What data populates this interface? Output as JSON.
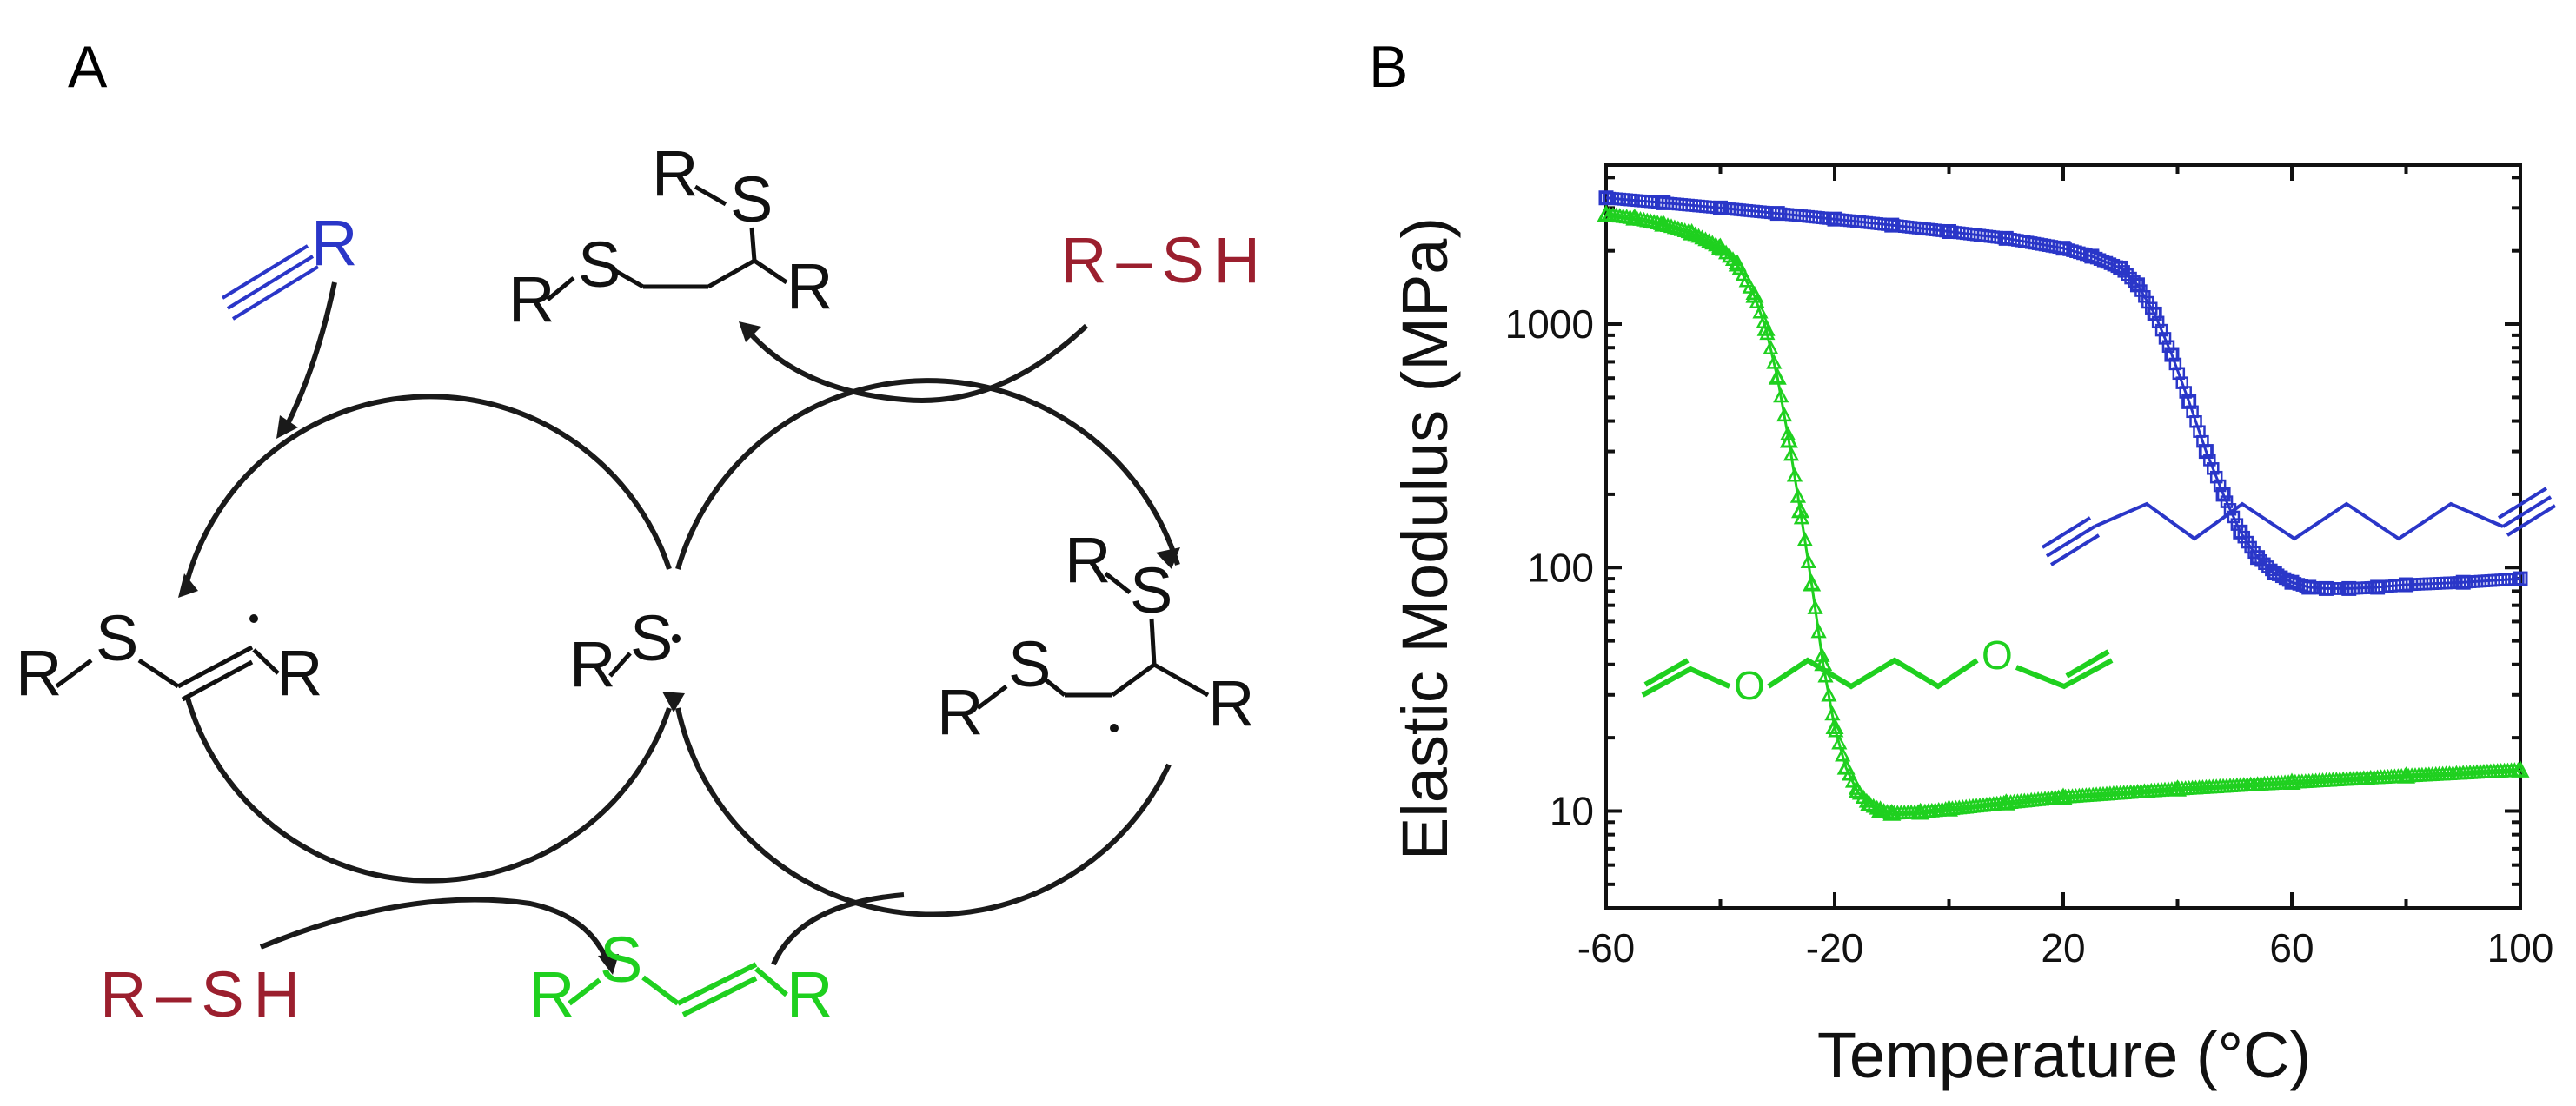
{
  "panel_a": {
    "letter": "A",
    "labels": {
      "alkyne_r": "R",
      "thiol_top": "R–SH",
      "thiol_bottom": "R–SH",
      "top_adduct_r1": "R",
      "top_adduct_s1": "S",
      "top_adduct_r2": "R",
      "top_adduct_s2": "S",
      "top_adduct_r3": "R",
      "vinyl_radical_r1": "R",
      "vinyl_radical_s": "S",
      "vinyl_radical_r2": "R",
      "thiyl_r": "R",
      "thiyl_s": "S",
      "right_adduct_r1": "R",
      "right_adduct_s1": "S",
      "right_adduct_r2": "R",
      "right_adduct_s2": "S",
      "right_adduct_r3": "R",
      "vinyl_sulfide_r1": "R",
      "vinyl_sulfide_s": "S",
      "vinyl_sulfide_r2": "R"
    },
    "colors": {
      "alkyne": "#2a36c8",
      "thiol": "#9b1f2e",
      "vinyl_sulfide": "#1fd01f",
      "scheme": "#111111"
    }
  },
  "panel_b": {
    "letter": "B"
  },
  "chart_data": {
    "type": "scatter",
    "title": "",
    "xlabel": "Temperature (°C)",
    "ylabel": "Elastic Modulus (MPa)",
    "xlim": [
      -60,
      100
    ],
    "ylim": [
      4,
      4500
    ],
    "yscale": "log",
    "x_ticks": [
      "-60",
      "-20",
      "20",
      "60",
      "100"
    ],
    "x_tick_values": [
      -60,
      -20,
      20,
      60,
      100
    ],
    "y_ticks": [
      "10",
      "100",
      "1000"
    ],
    "y_tick_values": [
      10,
      100,
      1000
    ],
    "grid": false,
    "legend": "none",
    "series": [
      {
        "color": "#2a36c8",
        "marker": "square",
        "icon": "dialkyne-structure",
        "x": [
          -60,
          -50,
          -40,
          -30,
          -20,
          -10,
          0,
          10,
          20,
          25,
          30,
          33,
          36,
          39,
          42,
          45,
          48,
          51,
          54,
          57,
          60,
          63,
          66,
          70,
          75,
          80,
          90,
          100
        ],
        "y": [
          3300,
          3150,
          3000,
          2850,
          2700,
          2550,
          2400,
          2250,
          2050,
          1900,
          1700,
          1450,
          1100,
          750,
          480,
          300,
          200,
          140,
          110,
          95,
          87,
          83,
          82,
          82,
          83,
          85,
          87,
          90
        ]
      },
      {
        "color": "#1fd01f",
        "marker": "triangle",
        "icon": "divinyl-ether-structure",
        "x": [
          -60,
          -55,
          -50,
          -45,
          -40,
          -37,
          -34,
          -32,
          -30,
          -28,
          -26,
          -24,
          -22,
          -20,
          -18,
          -16,
          -14,
          -12,
          -10,
          -5,
          0,
          10,
          20,
          40,
          60,
          80,
          100
        ],
        "y": [
          2800,
          2700,
          2550,
          2350,
          2050,
          1750,
          1300,
          950,
          600,
          330,
          170,
          85,
          40,
          22,
          15,
          12,
          10.6,
          10,
          9.7,
          9.8,
          10.1,
          10.7,
          11.3,
          12.2,
          13,
          13.8,
          14.6
        ]
      }
    ]
  }
}
